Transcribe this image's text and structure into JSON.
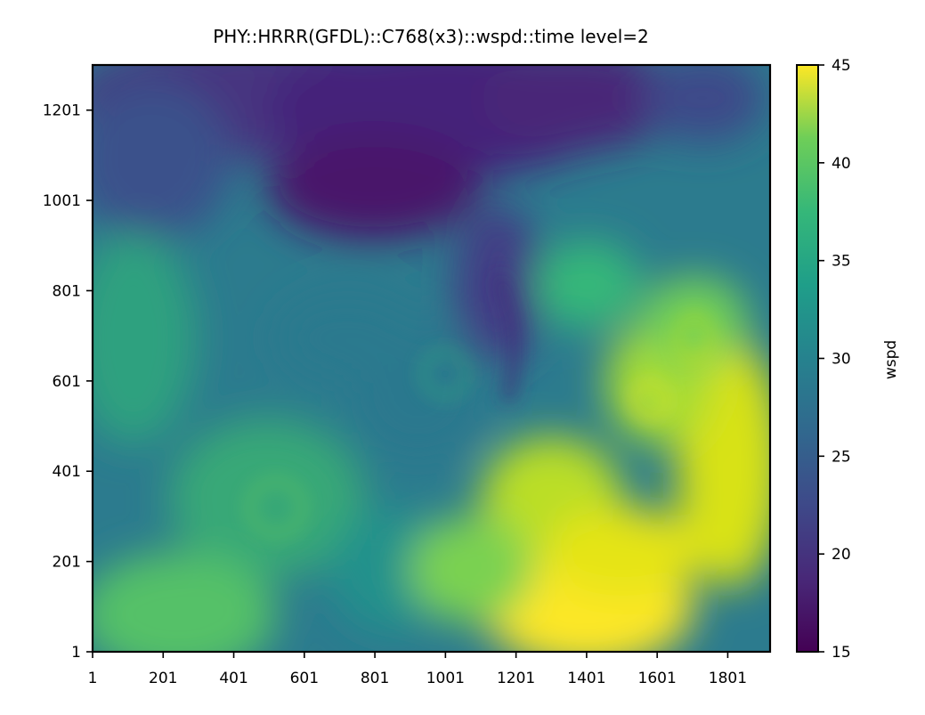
{
  "chart_data": {
    "type": "heatmap",
    "title": "PHY::HRRR(GFDL)::C768(x3)::wspd::time level=2",
    "xlabel": "",
    "ylabel": "",
    "x_ticks": [
      "1",
      "201",
      "401",
      "601",
      "801",
      "1001",
      "1201",
      "1401",
      "1601",
      "1801"
    ],
    "y_ticks": [
      "1",
      "201",
      "401",
      "601",
      "801",
      "1001",
      "1201"
    ],
    "xlim": [
      1,
      1921
    ],
    "ylim": [
      1,
      1301
    ],
    "colormap": "viridis",
    "colorbar": {
      "label": "wspd",
      "ticks": [
        "15",
        "20",
        "25",
        "30",
        "35",
        "40",
        "45"
      ],
      "range": [
        15,
        45
      ]
    },
    "field_description_values": {
      "high_speed_region": "lower-right (x 1201-1921, y 1-701), 38-45",
      "low_speed_region": "upper-center (x 401-1401, y 901-1301), 15-22",
      "mid_speed_region": "left and center, 25-35"
    },
    "colors": {
      "viridis_low": "#440154",
      "viridis_mid": "#21918c",
      "viridis_high": "#fde725"
    }
  }
}
